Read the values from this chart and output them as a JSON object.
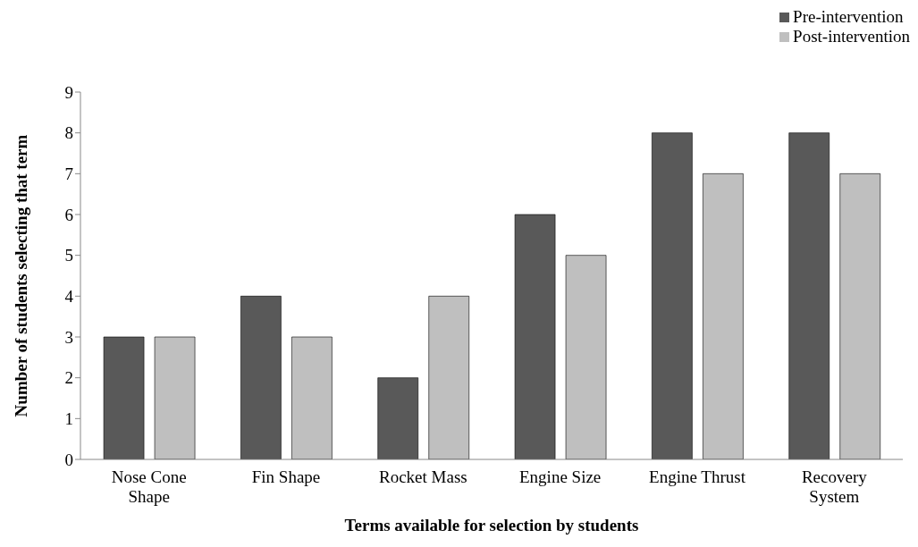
{
  "chart_data": {
    "type": "bar",
    "xlabel": "Terms available for selection by students",
    "ylabel": "Number of students selecting that term",
    "categories": [
      "Nose Cone Shape",
      "Fin Shape",
      "Rocket Mass",
      "Engine Size",
      "Engine Thrust",
      "Recovery System"
    ],
    "series": [
      {
        "name": "Pre-intervention",
        "color": "#595959",
        "values": [
          3,
          4,
          2,
          6,
          8,
          8
        ]
      },
      {
        "name": "Post-intervention",
        "color": "#bfbfbf",
        "values": [
          3,
          3,
          4,
          5,
          7,
          7
        ]
      }
    ],
    "ylim": [
      0,
      9
    ],
    "yticks": [
      0,
      1,
      2,
      3,
      4,
      5,
      6,
      7,
      8,
      9
    ],
    "grid": false,
    "legend": "top right"
  }
}
